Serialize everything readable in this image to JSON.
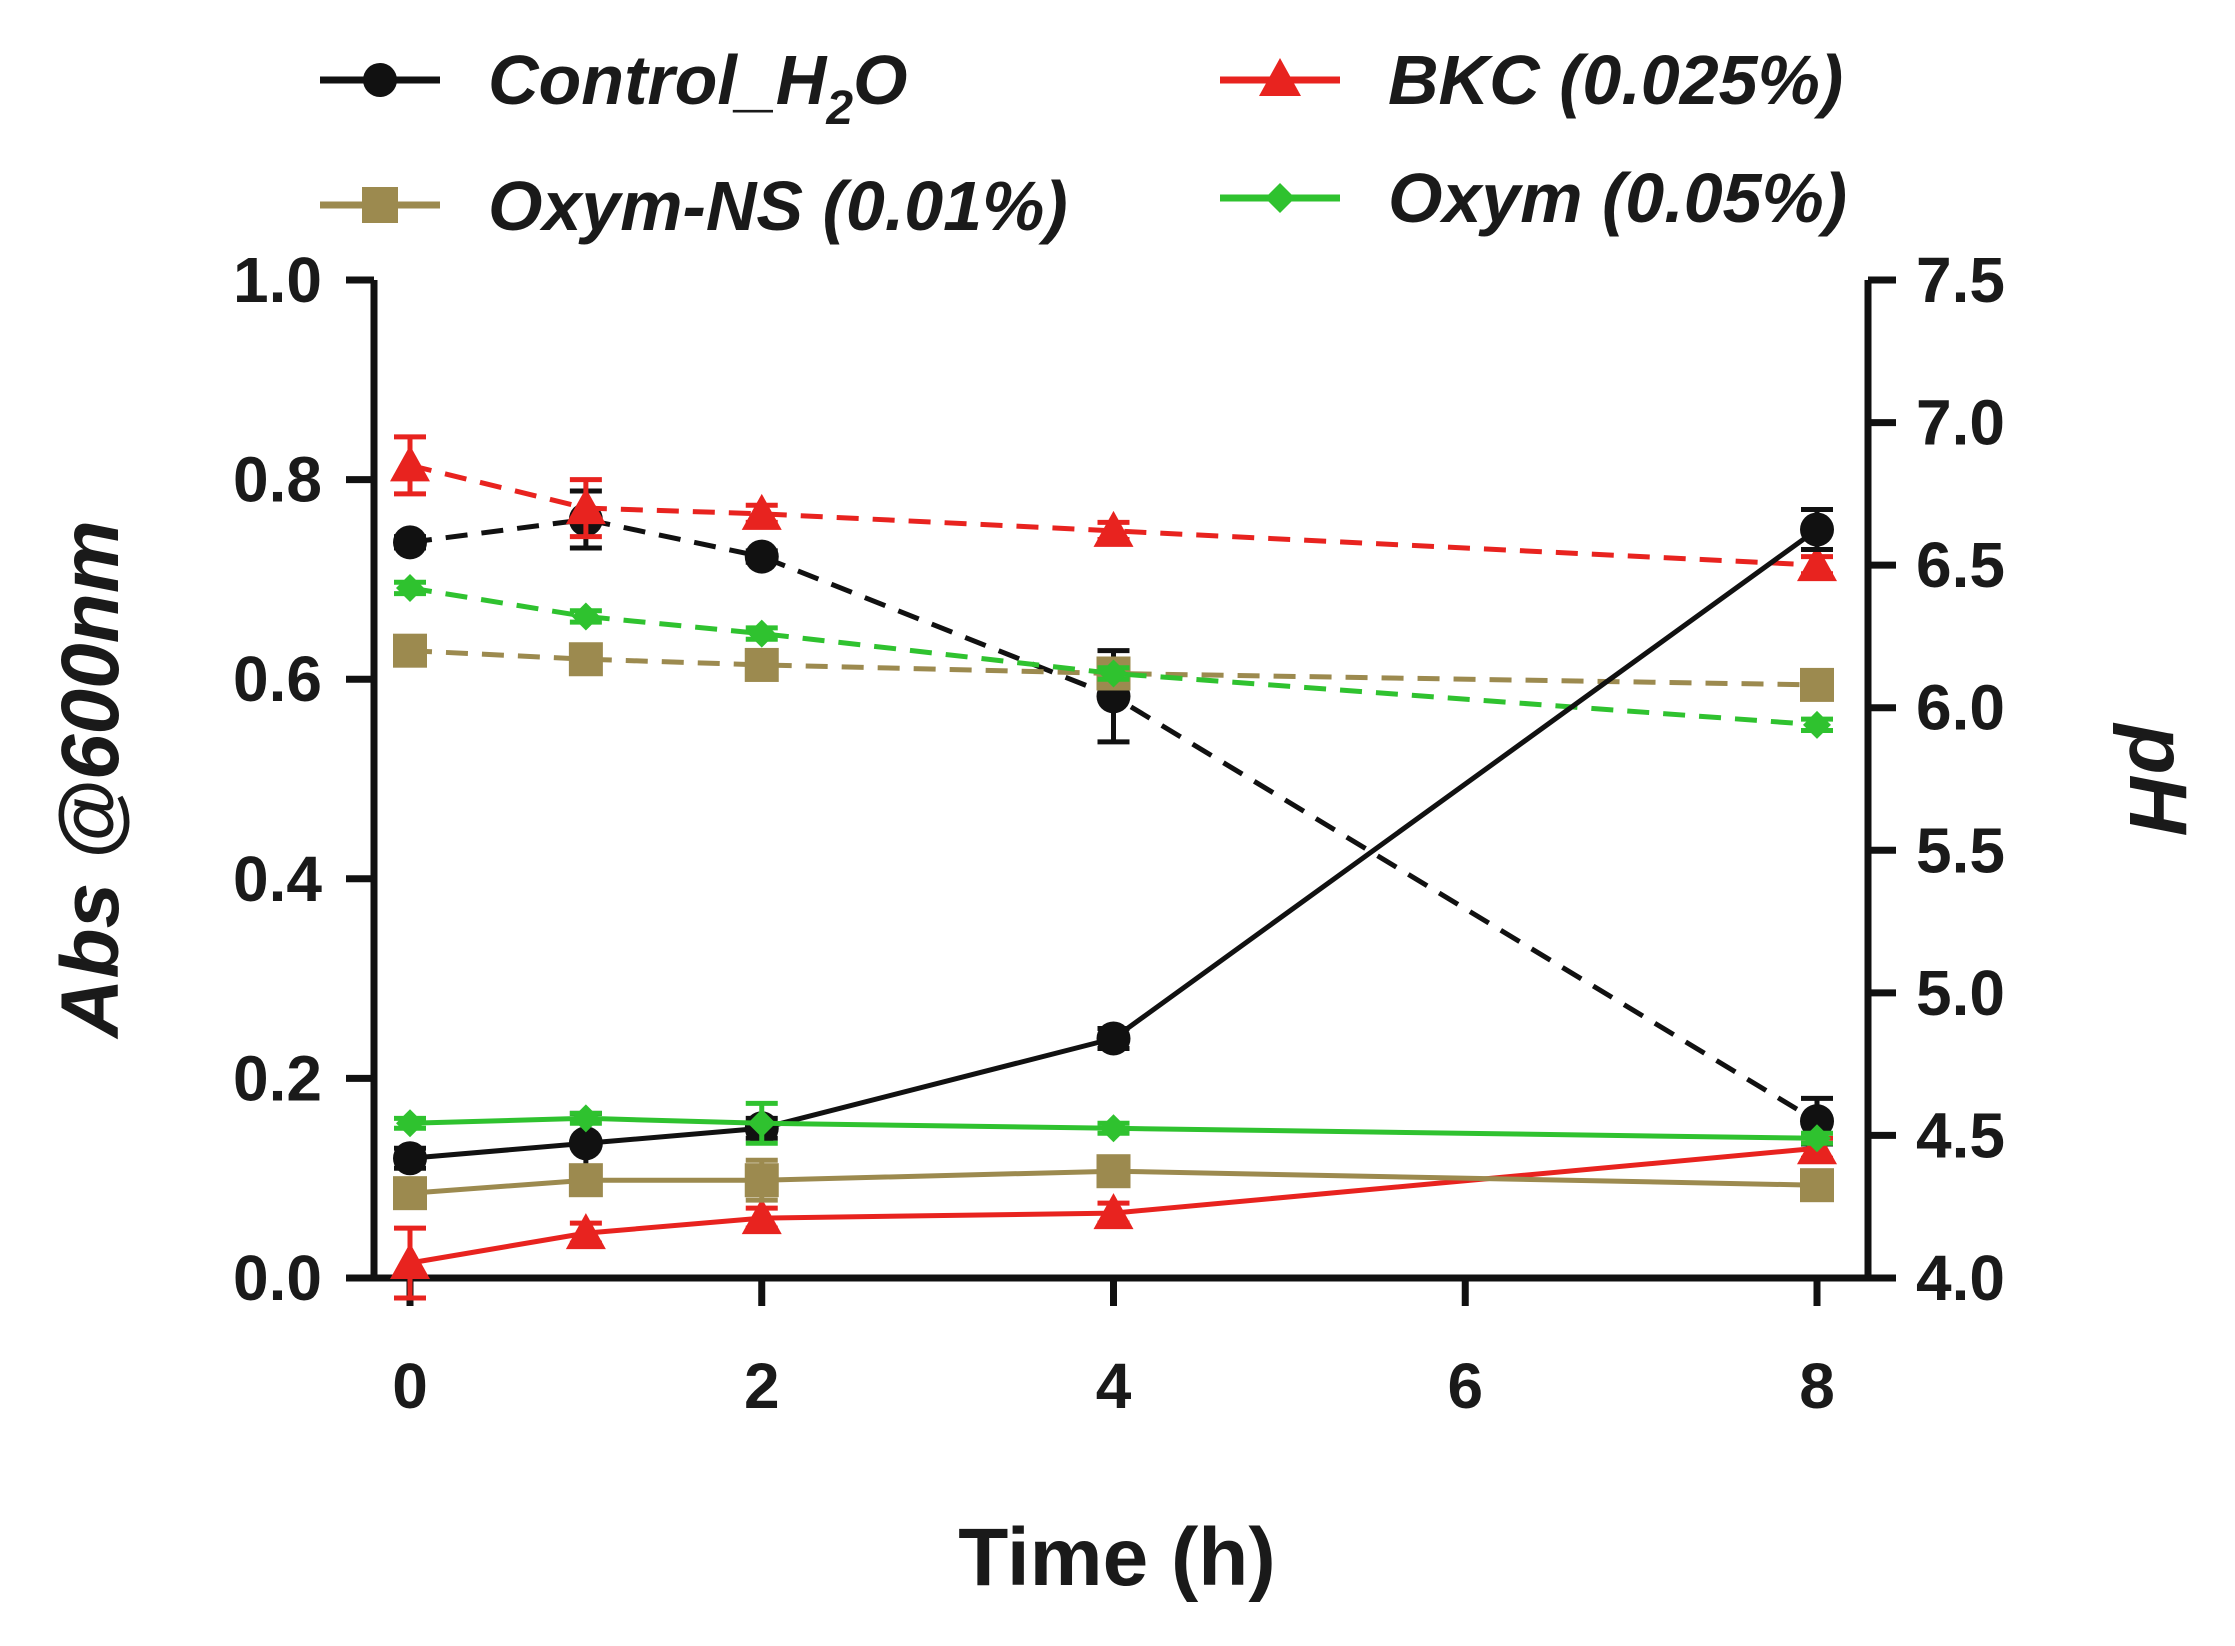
{
  "chart_data": {
    "type": "line",
    "xlabel": "Time (h)",
    "ylabel_left": "Abs @600nm",
    "ylabel_right": "pH",
    "xlim": [
      0,
      8
    ],
    "ylim_left": [
      0.0,
      1.0
    ],
    "ylim_right": [
      4.0,
      7.5
    ],
    "x_ticks": [
      "0",
      "2",
      "4",
      "6",
      "8"
    ],
    "y_left_ticks": [
      "0.0",
      "0.2",
      "0.4",
      "0.6",
      "0.8",
      "1.0"
    ],
    "y_right_ticks": [
      "4.0",
      "4.5",
      "5.0",
      "5.5",
      "6.0",
      "6.5",
      "7.0",
      "7.5"
    ],
    "x": [
      0,
      1,
      2,
      4,
      8
    ],
    "series": [
      {
        "name": "Control_H2O",
        "legend_main": "Control_H",
        "legend_sub": "2",
        "legend_tail": "O",
        "color": "#111111",
        "marker": "circle",
        "axis": "left",
        "style": "solid",
        "values": [
          0.12,
          0.135,
          0.15,
          0.24,
          0.75
        ],
        "errors": [
          0.01,
          0.03,
          0.01,
          0.01,
          0.02
        ]
      },
      {
        "name": "Control_H2O pH",
        "color": "#111111",
        "marker": "circle",
        "axis": "right",
        "style": "dashed",
        "values": [
          6.58,
          6.66,
          6.53,
          6.04,
          4.55
        ],
        "errors": [
          0.02,
          0.1,
          0.02,
          0.16,
          0.08
        ]
      },
      {
        "name": "BKC (0.025%)",
        "color": "#e8231f",
        "marker": "triangle",
        "axis": "left",
        "style": "solid",
        "values": [
          0.015,
          0.045,
          0.06,
          0.065,
          0.13
        ],
        "errors": [
          0.035,
          0.01,
          0.01,
          0.01,
          0.01
        ]
      },
      {
        "name": "BKC (0.025%) pH",
        "color": "#e8231f",
        "marker": "triangle",
        "axis": "right",
        "style": "dashed",
        "values": [
          6.85,
          6.7,
          6.68,
          6.62,
          6.5
        ],
        "errors": [
          0.1,
          0.1,
          0.03,
          0.03,
          0.03
        ]
      },
      {
        "name": "Oxym-NS (0.01%)",
        "color": "#9c8a4f",
        "marker": "square",
        "axis": "left",
        "style": "solid",
        "values": [
          0.085,
          0.098,
          0.098,
          0.107,
          0.093
        ],
        "errors": [
          0.01,
          0.01,
          0.02,
          0.01,
          0.01
        ]
      },
      {
        "name": "Oxym-NS (0.01%) pH",
        "color": "#9c8a4f",
        "marker": "square",
        "axis": "right",
        "style": "dashed",
        "values": [
          6.2,
          6.17,
          6.15,
          6.12,
          6.08
        ],
        "errors": [
          0.02,
          0.02,
          0.02,
          0.04,
          0.02
        ]
      },
      {
        "name": "Oxym (0.05%)",
        "color": "#2fc22f",
        "marker": "diamond",
        "axis": "left",
        "style": "solid",
        "values": [
          0.155,
          0.16,
          0.155,
          0.15,
          0.14
        ],
        "errors": [
          0.005,
          0.005,
          0.02,
          0.005,
          0.005
        ]
      },
      {
        "name": "Oxym (0.05%) pH",
        "color": "#2fc22f",
        "marker": "diamond",
        "axis": "right",
        "style": "dashed",
        "values": [
          6.42,
          6.32,
          6.26,
          6.12,
          5.94
        ],
        "errors": [
          0.02,
          0.02,
          0.02,
          0.02,
          0.02
        ]
      }
    ],
    "legend": [
      {
        "label": "Control_H2O",
        "color": "#111111",
        "marker": "circle"
      },
      {
        "label": "BKC (0.025%)",
        "color": "#e8231f",
        "marker": "triangle"
      },
      {
        "label": "Oxym-NS (0.01%)",
        "color": "#9c8a4f",
        "marker": "square"
      },
      {
        "label": "Oxym (0.05%)",
        "color": "#2fc22f",
        "marker": "diamond"
      }
    ]
  }
}
